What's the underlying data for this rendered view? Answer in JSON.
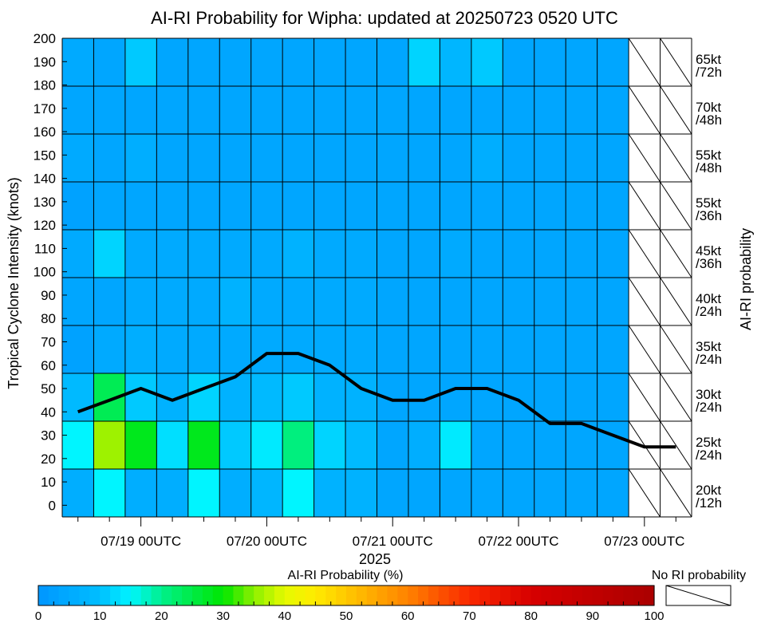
{
  "chart_data": {
    "type": "heatmap",
    "title": "AI-RI Probability for Wipha: updated at 20250723 0520 UTC",
    "xlabel": "2025",
    "ylabel": "Tropical Cyclone Intensity (knots)",
    "right_axis_label": "AI-RI probability",
    "y_ticks": [
      0,
      10,
      20,
      30,
      40,
      50,
      60,
      70,
      80,
      90,
      100,
      110,
      120,
      130,
      140,
      150,
      160,
      170,
      180,
      190,
      200
    ],
    "ylim": [
      -5,
      200
    ],
    "x_tick_labels": [
      "07/19 00UTC",
      "07/20 00UTC",
      "07/21 00UTC",
      "07/22 00UTC",
      "07/23 00UTC"
    ],
    "time_steps": [
      "07/18 12UTC",
      "07/18 18UTC",
      "07/19 00UTC",
      "07/19 06UTC",
      "07/19 12UTC",
      "07/19 18UTC",
      "07/20 00UTC",
      "07/20 06UTC",
      "07/20 12UTC",
      "07/20 18UTC",
      "07/21 00UTC",
      "07/21 06UTC",
      "07/21 12UTC",
      "07/21 18UTC",
      "07/22 00UTC",
      "07/22 06UTC",
      "07/22 12UTC",
      "07/22 18UTC",
      "07/23 00UTC",
      "07/23 06UTC"
    ],
    "rows": [
      {
        "threshold_line1": "20kt",
        "threshold_line2": "/12h",
        "values": [
          6,
          15,
          6,
          6,
          15,
          6,
          8,
          15,
          7,
          7,
          4,
          4,
          4,
          4,
          4,
          4,
          4,
          4,
          null,
          null
        ]
      },
      {
        "threshold_line1": "25kt",
        "threshold_line2": "/24h",
        "values": [
          15,
          36,
          28,
          13,
          28,
          11,
          14,
          21,
          12,
          9,
          4,
          6,
          14,
          4,
          4,
          4,
          4,
          4,
          null,
          null
        ]
      },
      {
        "threshold_line1": "30kt",
        "threshold_line2": "/24h",
        "values": [
          9,
          24,
          11,
          7,
          12,
          7,
          9,
          11,
          7,
          7,
          4,
          4,
          4,
          4,
          4,
          4,
          4,
          4,
          null,
          null
        ]
      },
      {
        "threshold_line1": "35kt",
        "threshold_line2": "/24h",
        "values": [
          3,
          5,
          6,
          5,
          5,
          5,
          5,
          5,
          5,
          5,
          4,
          4,
          4,
          4,
          4,
          4,
          4,
          4,
          null,
          null
        ]
      },
      {
        "threshold_line1": "40kt",
        "threshold_line2": "/24h",
        "values": [
          4,
          4,
          5,
          5,
          5,
          7,
          5,
          5,
          5,
          5,
          4,
          4,
          4,
          4,
          4,
          4,
          4,
          4,
          null,
          null
        ]
      },
      {
        "threshold_line1": "45kt",
        "threshold_line2": "/36h",
        "values": [
          5,
          12,
          5,
          5,
          5,
          5,
          5,
          7,
          5,
          5,
          4,
          4,
          5,
          4,
          4,
          4,
          4,
          4,
          null,
          null
        ]
      },
      {
        "threshold_line1": "55kt",
        "threshold_line2": "/36h",
        "values": [
          3,
          4,
          4,
          4,
          4,
          4,
          4,
          4,
          4,
          4,
          4,
          4,
          4,
          4,
          4,
          4,
          4,
          4,
          null,
          null
        ]
      },
      {
        "threshold_line1": "55kt",
        "threshold_line2": "/48h",
        "values": [
          5,
          4,
          6,
          4,
          4,
          4,
          4,
          4,
          4,
          4,
          4,
          4,
          4,
          6,
          4,
          4,
          4,
          4,
          null,
          null
        ]
      },
      {
        "threshold_line1": "70kt",
        "threshold_line2": "/48h",
        "values": [
          4,
          4,
          4,
          4,
          4,
          4,
          4,
          4,
          4,
          4,
          4,
          4,
          4,
          4,
          4,
          4,
          4,
          4,
          null,
          null
        ]
      },
      {
        "threshold_line1": "65kt",
        "threshold_line2": "/72h",
        "values": [
          5,
          4,
          11,
          4,
          4,
          4,
          4,
          4,
          4,
          4,
          4,
          12,
          8,
          11,
          4,
          4,
          4,
          4,
          null,
          null
        ]
      }
    ],
    "intensity_series": [
      40,
      45,
      50,
      45,
      50,
      55,
      65,
      65,
      60,
      50,
      45,
      45,
      50,
      50,
      45,
      35,
      35,
      30,
      25,
      25
    ],
    "colorbar": {
      "label": "AI-RI Probability (%)",
      "ticks": [
        0,
        10,
        20,
        30,
        40,
        50,
        60,
        70,
        80,
        90,
        100
      ],
      "range": [
        0,
        100
      ]
    },
    "no_ri_legend": "No RI probability",
    "grid": true
  }
}
